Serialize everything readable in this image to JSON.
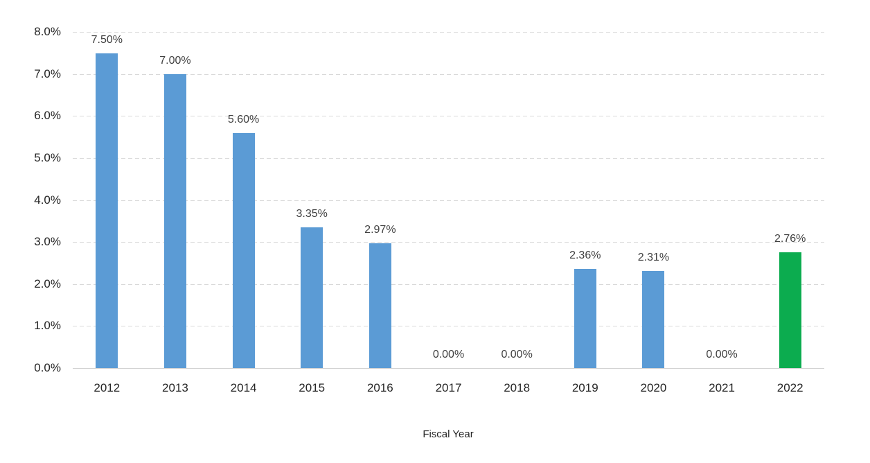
{
  "chart_data": {
    "type": "bar",
    "title": "",
    "xlabel": "Fiscal Year",
    "ylabel": "",
    "categories": [
      "2012",
      "2013",
      "2014",
      "2015",
      "2016",
      "2017",
      "2018",
      "2019",
      "2020",
      "2021",
      "2022"
    ],
    "values": [
      7.5,
      7.0,
      5.6,
      3.35,
      2.97,
      0.0,
      0.0,
      2.36,
      2.31,
      0.0,
      2.76
    ],
    "data_labels": [
      "7.50%",
      "7.00%",
      "5.60%",
      "3.35%",
      "2.97%",
      "0.00%",
      "0.00%",
      "2.36%",
      "2.31%",
      "0.00%",
      "2.76%"
    ],
    "bar_colors": [
      "#5B9BD5",
      "#5B9BD5",
      "#5B9BD5",
      "#5B9BD5",
      "#5B9BD5",
      "#5B9BD5",
      "#5B9BD5",
      "#5B9BD5",
      "#5B9BD5",
      "#5B9BD5",
      "#0CAC4F"
    ],
    "y_tick_labels": [
      "0.0%",
      "1.0%",
      "2.0%",
      "3.0%",
      "4.0%",
      "5.0%",
      "6.0%",
      "7.0%",
      "8.0%"
    ],
    "y_tick_values": [
      0,
      1,
      2,
      3,
      4,
      5,
      6,
      7,
      8
    ],
    "ylim": [
      0,
      8
    ],
    "grid": "horizontal-dashed",
    "legend": "none",
    "colors": {
      "bar_blue": "#5B9BD5",
      "bar_green": "#0CAC4F",
      "gridline": "#D9D9D9",
      "axis_line": "#D0D0D0",
      "tick_text": "#262626",
      "data_label_text": "#404040",
      "background": "#FFFFFF"
    }
  }
}
